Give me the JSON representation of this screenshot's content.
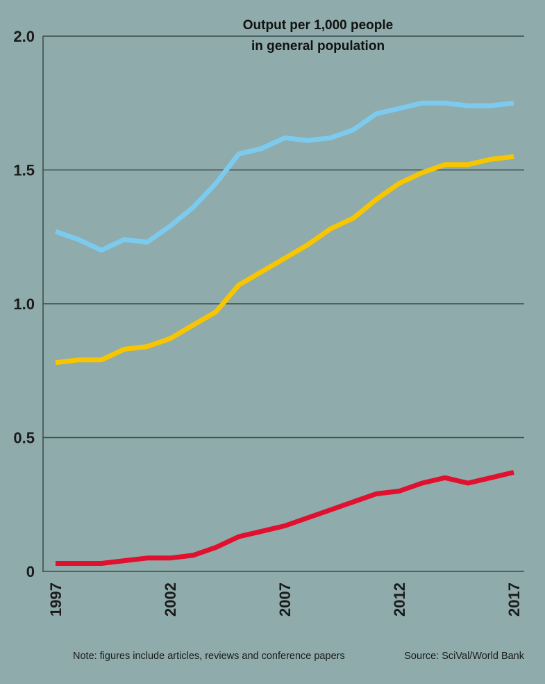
{
  "chart_data": {
    "type": "line",
    "title_lines": [
      "Output per 1,000 people",
      "in general population"
    ],
    "xlabel": "",
    "ylabel": "",
    "x": [
      1997,
      1998,
      1999,
      2000,
      2001,
      2002,
      2003,
      2004,
      2005,
      2006,
      2007,
      2008,
      2009,
      2010,
      2011,
      2012,
      2013,
      2014,
      2015,
      2016,
      2017
    ],
    "x_tick_labels": [
      "1997",
      "2002",
      "2007",
      "2012",
      "2017"
    ],
    "x_ticks": [
      1997,
      2002,
      2007,
      2012,
      2017
    ],
    "y_tick_labels": [
      "0",
      "0.5",
      "1.0",
      "1.5",
      "2.0"
    ],
    "y_ticks": [
      0,
      0.5,
      1.0,
      1.5,
      2.0
    ],
    "ylim": [
      0,
      2.0
    ],
    "xlim": [
      1996.5,
      2017.4
    ],
    "grid": "horizontal",
    "series": [
      {
        "color": "#7ccbef",
        "values": [
          1.27,
          1.24,
          1.2,
          1.24,
          1.23,
          1.29,
          1.36,
          1.45,
          1.56,
          1.58,
          1.62,
          1.61,
          1.62,
          1.65,
          1.71,
          1.73,
          1.75,
          1.75,
          1.74,
          1.74,
          1.75
        ]
      },
      {
        "color": "#f7c600",
        "values": [
          0.78,
          0.79,
          0.79,
          0.83,
          0.84,
          0.87,
          0.92,
          0.97,
          1.07,
          1.12,
          1.17,
          1.22,
          1.28,
          1.32,
          1.39,
          1.45,
          1.49,
          1.52,
          1.52,
          1.54,
          1.55
        ]
      },
      {
        "color": "#e0102e",
        "values": [
          0.03,
          0.03,
          0.03,
          0.04,
          0.05,
          0.05,
          0.06,
          0.09,
          0.13,
          0.15,
          0.17,
          0.2,
          0.23,
          0.26,
          0.29,
          0.3,
          0.33,
          0.35,
          0.33,
          0.35,
          0.37
        ]
      }
    ]
  },
  "footer": {
    "note": "Note: figures include articles, reviews and conference papers",
    "source": "Source: SciVal/World Bank"
  }
}
